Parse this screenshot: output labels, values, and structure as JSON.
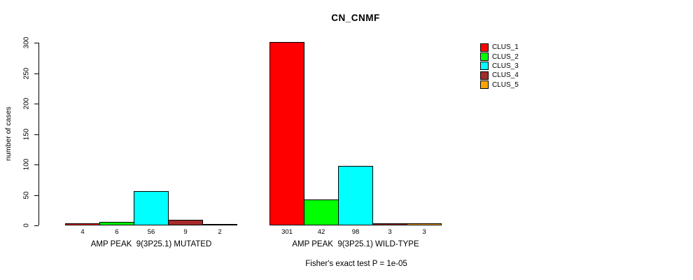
{
  "chart_data": {
    "type": "bar",
    "title": "CN_CNMF",
    "ylabel": "number of cases",
    "xlabel": "",
    "ylim": [
      0,
      300
    ],
    "yticks": [
      0,
      50,
      100,
      150,
      200,
      250,
      300
    ],
    "grid": false,
    "legend": {
      "position": "right",
      "entries": [
        {
          "label": "CLUS_1",
          "color": "#FF0000"
        },
        {
          "label": "CLUS_2",
          "color": "#00FF00"
        },
        {
          "label": "CLUS_3",
          "color": "#00FFFF"
        },
        {
          "label": "CLUS_4",
          "color": "#A52A2A"
        },
        {
          "label": "CLUS_5",
          "color": "#FFA500"
        }
      ]
    },
    "groups": [
      {
        "label": "AMP PEAK  9(3P25.1) MUTATED",
        "values": [
          4,
          6,
          56,
          9,
          2
        ],
        "value_labels": [
          "4",
          "6",
          "56",
          "9",
          "2"
        ]
      },
      {
        "label": "AMP PEAK  9(3P25.1) WILD-TYPE",
        "values": [
          301,
          42,
          98,
          3,
          3
        ],
        "value_labels": [
          "301",
          "42",
          "98",
          "3",
          "3"
        ]
      }
    ],
    "annotation": "Fisher's exact test P = 1e-05"
  }
}
